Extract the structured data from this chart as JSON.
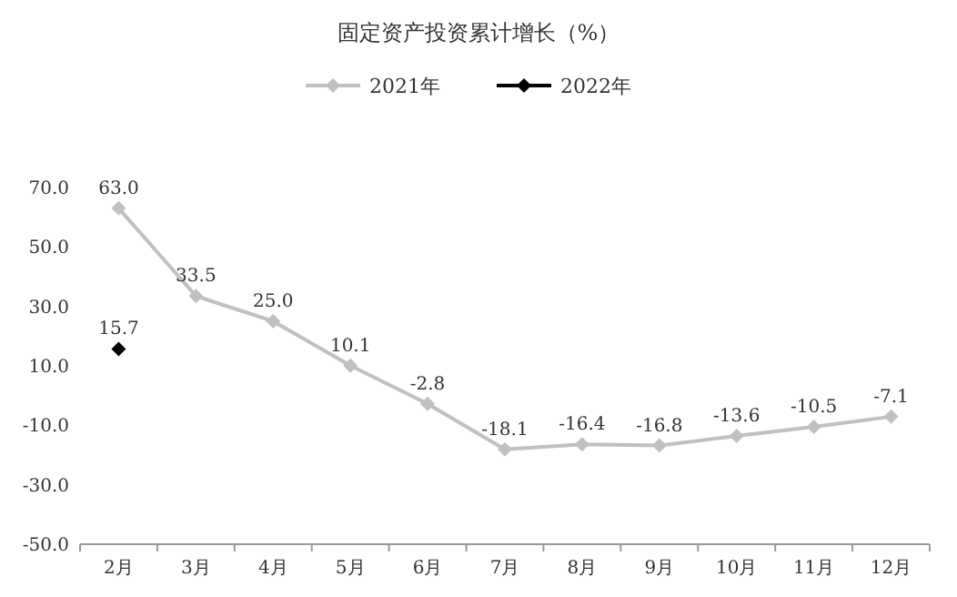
{
  "chart_data": {
    "type": "line",
    "title": "固定资产投资累计增长（%）",
    "categories": [
      "2月",
      "3月",
      "4月",
      "5月",
      "6月",
      "7月",
      "8月",
      "9月",
      "10月",
      "11月",
      "12月"
    ],
    "series": [
      {
        "name": "2021年",
        "color": "#c0c0c0",
        "values": [
          63.0,
          33.5,
          25.0,
          10.1,
          -2.8,
          -18.1,
          -16.4,
          -16.8,
          -13.6,
          -10.5,
          -7.1
        ],
        "value_labels": [
          "63.0",
          "33.5",
          "25.0",
          "10.1",
          "-2.8",
          "-18.1",
          "-16.4",
          "-16.8",
          "-13.6",
          "-10.5",
          "-7.1"
        ]
      },
      {
        "name": "2022年",
        "color": "#000000",
        "values": [
          15.7,
          null,
          null,
          null,
          null,
          null,
          null,
          null,
          null,
          null,
          null
        ],
        "value_labels": [
          "15.7",
          null,
          null,
          null,
          null,
          null,
          null,
          null,
          null,
          null,
          null
        ]
      }
    ],
    "ylim": [
      -50,
      70
    ],
    "yticks": [
      {
        "value": -50,
        "label": "-50.0"
      },
      {
        "value": -30,
        "label": "-30.0"
      },
      {
        "value": -10,
        "label": "-10.0"
      },
      {
        "value": 10,
        "label": "10.0"
      },
      {
        "value": 30,
        "label": "30.0"
      },
      {
        "value": 50,
        "label": "50.0"
      },
      {
        "value": 70,
        "label": "70.0"
      }
    ],
    "legend": "top",
    "marker": "diamond",
    "line_style": "solid",
    "grid": false
  }
}
